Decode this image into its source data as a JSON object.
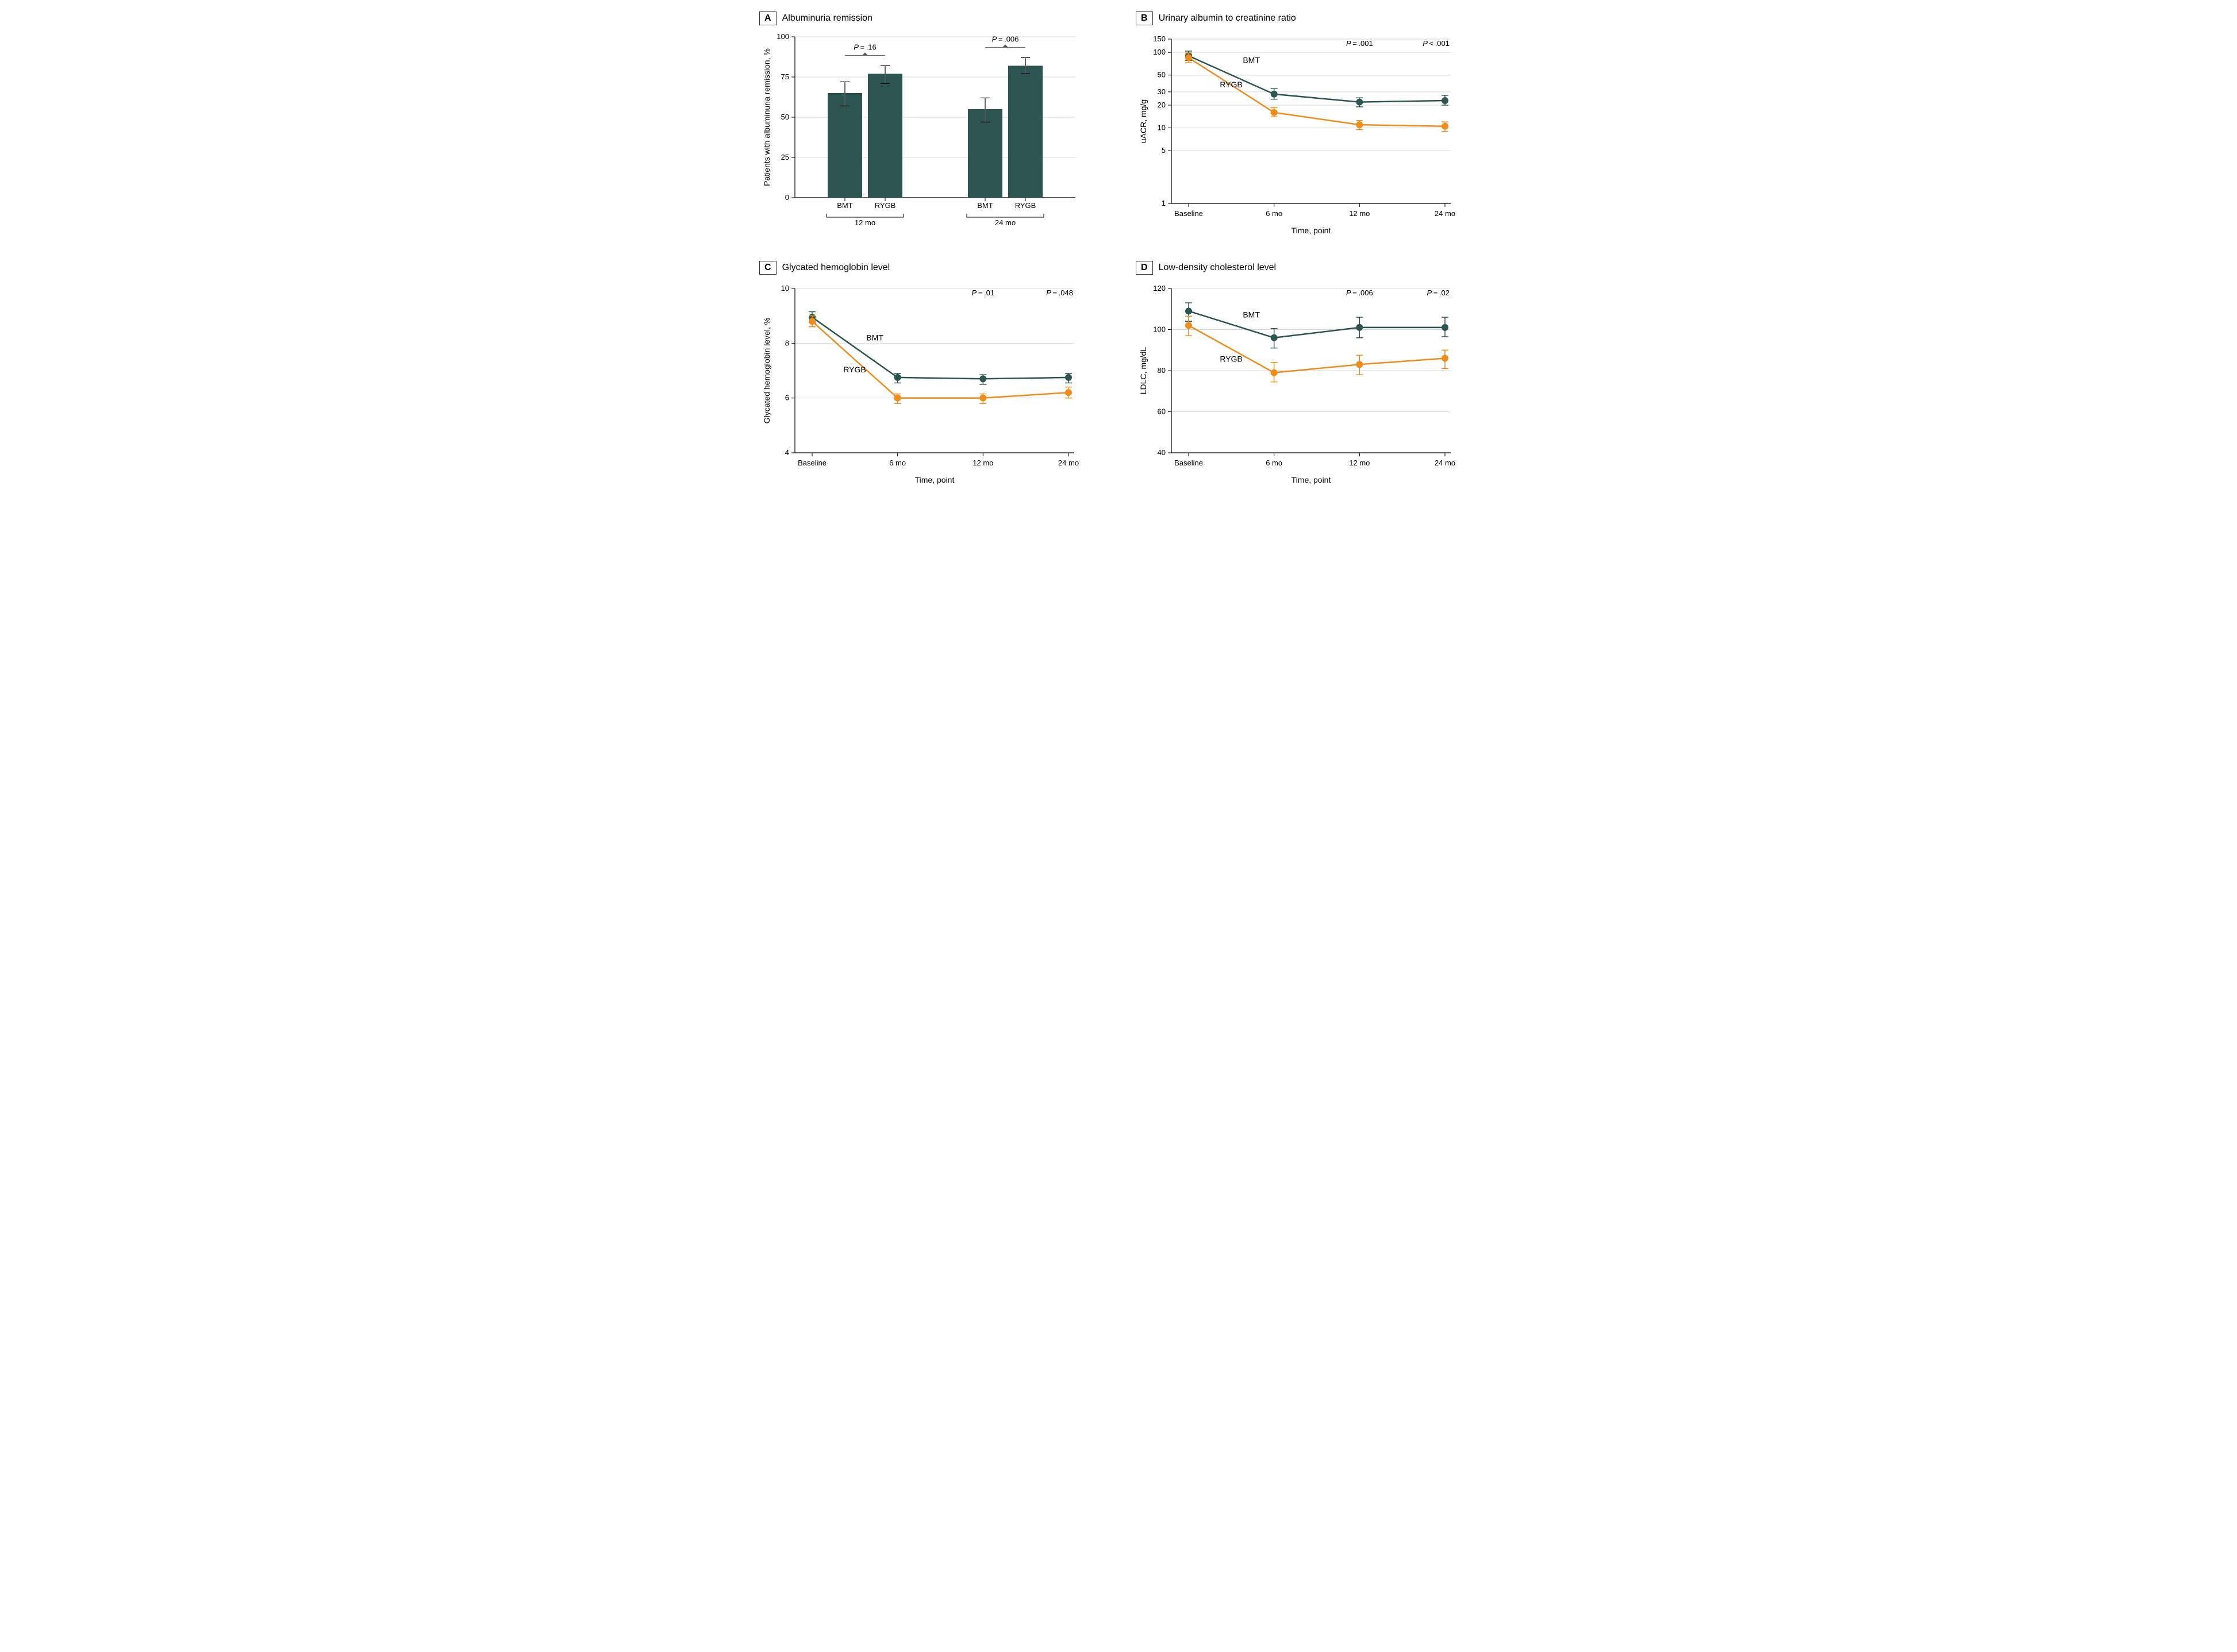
{
  "colors": {
    "bar": "#2c5552",
    "series_bmt": "#2c5552",
    "series_rygb": "#f08c1a",
    "grid": "#d9d9d9",
    "axis": "#000000",
    "text": "#000000",
    "background": "#ffffff"
  },
  "typography": {
    "title_fontsize": 16,
    "axis_label_fontsize": 14,
    "tick_fontsize": 13,
    "pvalue_fontsize": 13
  },
  "panel_a": {
    "letter": "A",
    "title": "Albuminuria remission",
    "type": "bar",
    "ylabel": "Patients with albuminuria remission, %",
    "ylim": [
      0,
      100
    ],
    "ytick_step": 25,
    "groups": [
      {
        "label": "12 mo",
        "bars": [
          {
            "cat": "BMT",
            "value": 65,
            "err_low": 57,
            "err_high": 72
          },
          {
            "cat": "RYGB",
            "value": 77,
            "err_low": 71,
            "err_high": 82
          }
        ],
        "pvalue": "P = .16"
      },
      {
        "label": "24 mo",
        "bars": [
          {
            "cat": "BMT",
            "value": 55,
            "err_low": 47,
            "err_high": 62
          },
          {
            "cat": "RYGB",
            "value": 82,
            "err_low": 77,
            "err_high": 87
          }
        ],
        "pvalue": "P = .006"
      }
    ],
    "bar_width": 0.6
  },
  "panel_b": {
    "letter": "B",
    "title": "Urinary albumin to creatinine ratio",
    "type": "line",
    "yscale": "log",
    "ylabel": "uACR, mg/g",
    "xlabel": "Time, point",
    "yticks": [
      1,
      5,
      10,
      20,
      30,
      50,
      100,
      150
    ],
    "ylim": [
      1,
      150
    ],
    "x_categories": [
      "Baseline",
      "6 mo",
      "12 mo",
      "24 mo"
    ],
    "series": {
      "BMT": {
        "values": [
          90,
          28,
          22,
          23
        ],
        "err": [
          [
            78,
            104
          ],
          [
            24,
            33
          ],
          [
            19,
            25
          ],
          [
            20,
            27
          ]
        ]
      },
      "RYGB": {
        "values": [
          85,
          16,
          11,
          10.5
        ],
        "err": [
          [
            73,
            98
          ],
          [
            14,
            18.5
          ],
          [
            9.5,
            12.5
          ],
          [
            9,
            12
          ]
        ]
      }
    },
    "pvalues": {
      "12 mo": "P = .001",
      "24 mo": "P < .001"
    },
    "line_width": 2.5,
    "marker_size": 6
  },
  "panel_c": {
    "letter": "C",
    "title": "Glycated hemoglobin level",
    "type": "line",
    "yscale": "linear",
    "ylabel": "Glycated hemoglobin level, %",
    "xlabel": "Time, point",
    "ylim": [
      4,
      10
    ],
    "ytick_step": 2,
    "x_categories": [
      "Baseline",
      "6 mo",
      "12 mo",
      "24 mo"
    ],
    "series": {
      "BMT": {
        "values": [
          8.95,
          6.75,
          6.7,
          6.75
        ],
        "err": [
          [
            8.75,
            9.15
          ],
          [
            6.55,
            6.9
          ],
          [
            6.5,
            6.85
          ],
          [
            6.55,
            6.9
          ]
        ]
      },
      "RYGB": {
        "values": [
          8.8,
          6.0,
          6.0,
          6.2
        ],
        "err": [
          [
            8.6,
            9.0
          ],
          [
            5.8,
            6.15
          ],
          [
            5.8,
            6.15
          ],
          [
            6.0,
            6.4
          ]
        ]
      }
    },
    "pvalues": {
      "12 mo": "P = .01",
      "24 mo": "P = .048"
    },
    "line_width": 2.5,
    "marker_size": 6
  },
  "panel_d": {
    "letter": "D",
    "title": "Low-density cholesterol level",
    "type": "line",
    "yscale": "linear",
    "ylabel": "LDLC, mg/dL",
    "xlabel": "Time, point",
    "ylim": [
      40,
      120
    ],
    "ytick_step": 20,
    "x_categories": [
      "Baseline",
      "6 mo",
      "12 mo",
      "24 mo"
    ],
    "series": {
      "BMT": {
        "values": [
          109,
          96,
          101,
          101
        ],
        "err": [
          [
            104,
            113
          ],
          [
            91,
            100.5
          ],
          [
            96,
            106
          ],
          [
            96.5,
            106
          ]
        ]
      },
      "RYGB": {
        "values": [
          102,
          79,
          83,
          86
        ],
        "err": [
          [
            97,
            106.5
          ],
          [
            74.5,
            84
          ],
          [
            78,
            87.5
          ],
          [
            81,
            90
          ]
        ]
      }
    },
    "pvalues": {
      "12 mo": "P = .006",
      "24 mo": "P = .02"
    },
    "line_width": 2.5,
    "marker_size": 6
  }
}
